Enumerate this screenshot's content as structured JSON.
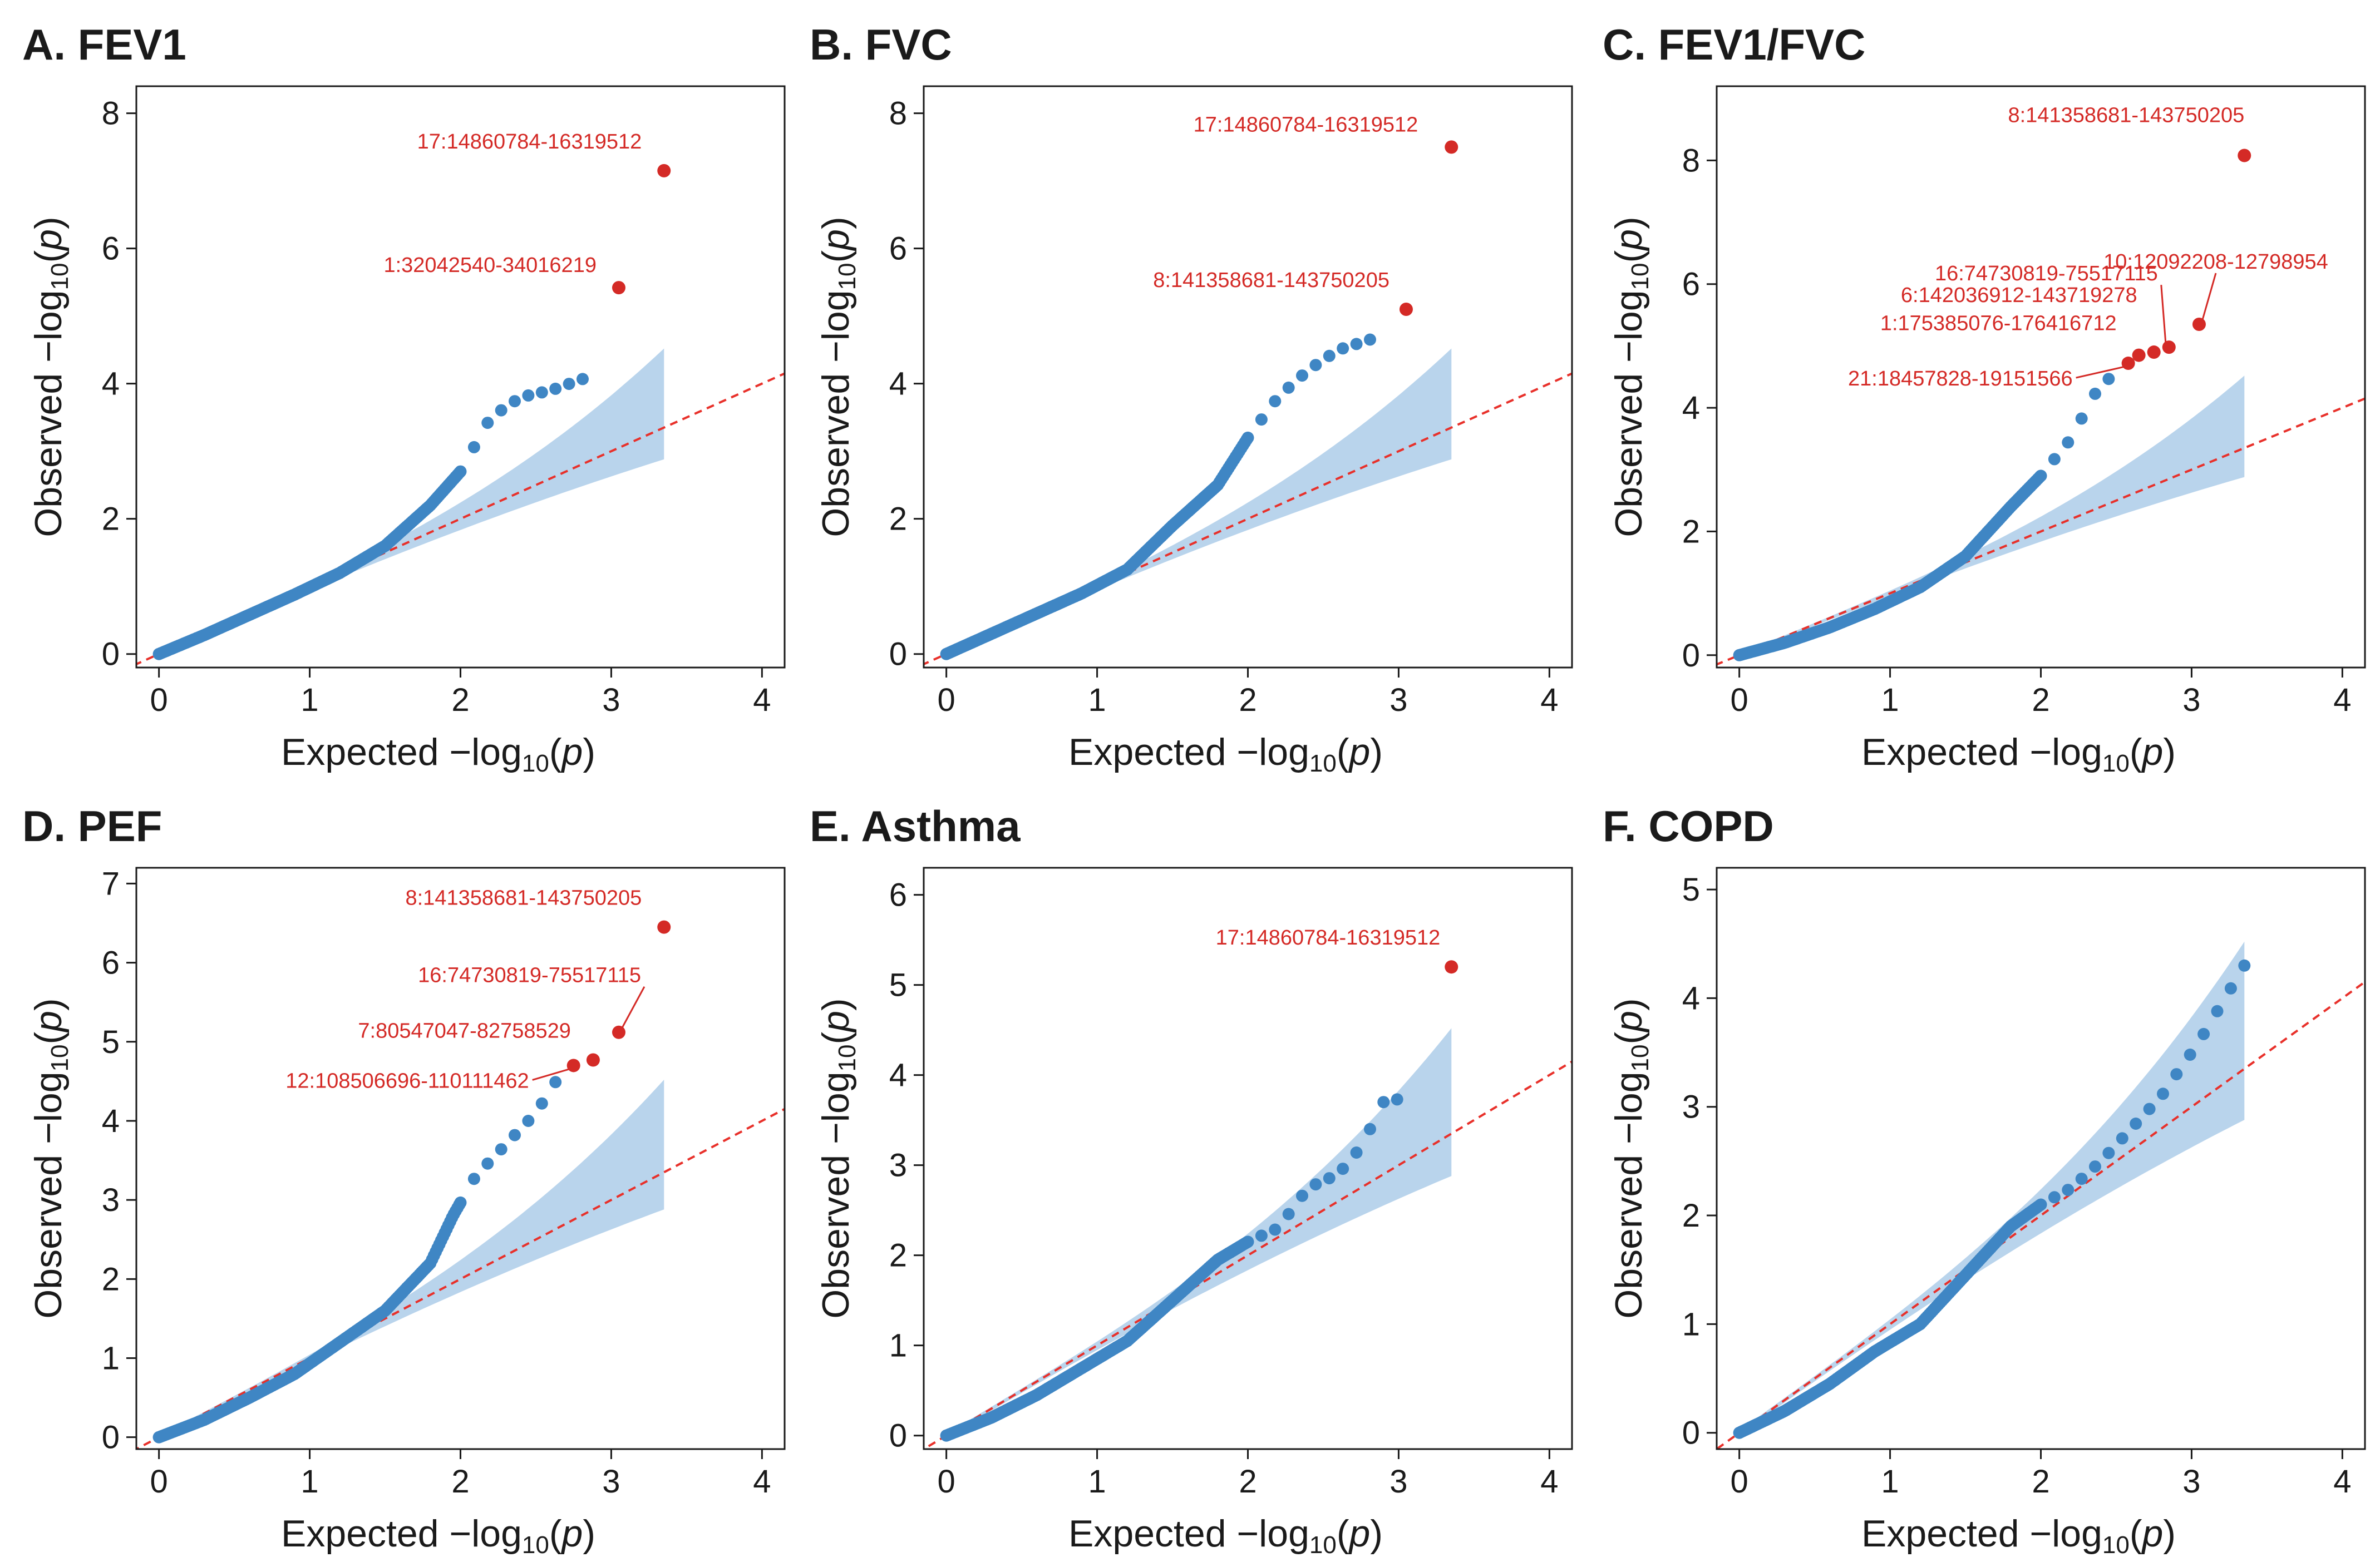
{
  "figure": {
    "x_label_main": "Expected −log",
    "y_label_main": "Observed −log",
    "label_base_sub": "10",
    "label_open": "(",
    "label_var": "p",
    "label_close": ")"
  },
  "colors": {
    "points": "#3f86c4",
    "hits": "#d42a26",
    "band": "#b9d4ec",
    "reference_line": "#e8302a"
  },
  "chart_data": [
    {
      "id": "A",
      "type": "scatter",
      "title": "A. FEV1",
      "xlabel": "Expected −log10(p)",
      "ylabel": "Observed −log10(p)",
      "xlim": [
        -0.15,
        4.15
      ],
      "ylim": [
        -0.2,
        8.4
      ],
      "xticks": [
        0,
        1,
        2,
        3,
        4
      ],
      "yticks": [
        0,
        2,
        4,
        6,
        8
      ],
      "max_expected": 3.35,
      "curve": [
        [
          0,
          0
        ],
        [
          0.3,
          0.28
        ],
        [
          0.6,
          0.58
        ],
        [
          0.9,
          0.88
        ],
        [
          1.2,
          1.2
        ],
        [
          1.5,
          1.6
        ],
        [
          1.8,
          2.2
        ],
        [
          2.0,
          2.7
        ],
        [
          2.2,
          3.5
        ],
        [
          2.4,
          3.8
        ],
        [
          2.6,
          3.9
        ],
        [
          2.85,
          4.1
        ]
      ],
      "hits": [
        {
          "label": "17:14860784-16319512",
          "x": 3.35,
          "y": 7.15
        },
        {
          "label": "1:32042540-34016219",
          "x": 3.05,
          "y": 5.42
        }
      ]
    },
    {
      "id": "B",
      "type": "scatter",
      "title": "B. FVC",
      "xlabel": "Expected −log10(p)",
      "ylabel": "Observed −log10(p)",
      "xlim": [
        -0.15,
        4.15
      ],
      "ylim": [
        -0.2,
        8.4
      ],
      "xticks": [
        0,
        1,
        2,
        3,
        4
      ],
      "yticks": [
        0,
        2,
        4,
        6,
        8
      ],
      "max_expected": 3.35,
      "curve": [
        [
          0,
          0
        ],
        [
          0.3,
          0.3
        ],
        [
          0.6,
          0.6
        ],
        [
          0.9,
          0.9
        ],
        [
          1.2,
          1.25
        ],
        [
          1.5,
          1.9
        ],
        [
          1.8,
          2.5
        ],
        [
          2.0,
          3.2
        ],
        [
          2.2,
          3.8
        ],
        [
          2.4,
          4.2
        ],
        [
          2.6,
          4.5
        ],
        [
          2.85,
          4.68
        ]
      ],
      "hits": [
        {
          "label": "17:14860784-16319512",
          "x": 3.35,
          "y": 7.5
        },
        {
          "label": "8:141358681-143750205",
          "x": 3.05,
          "y": 5.1
        }
      ]
    },
    {
      "id": "C",
      "type": "scatter",
      "title": "C. FEV1/FVC",
      "xlabel": "Expected −log10(p)",
      "ylabel": "Observed −log10(p)",
      "xlim": [
        -0.15,
        4.15
      ],
      "ylim": [
        -0.2,
        9.2
      ],
      "xticks": [
        0,
        1,
        2,
        3,
        4
      ],
      "yticks": [
        0,
        2,
        4,
        6,
        8
      ],
      "max_expected": 3.35,
      "curve": [
        [
          0,
          0
        ],
        [
          0.3,
          0.2
        ],
        [
          0.6,
          0.45
        ],
        [
          0.9,
          0.75
        ],
        [
          1.2,
          1.1
        ],
        [
          1.5,
          1.6
        ],
        [
          1.8,
          2.4
        ],
        [
          2.0,
          2.9
        ],
        [
          2.2,
          3.5
        ],
        [
          2.35,
          4.2
        ],
        [
          2.5,
          4.6
        ]
      ],
      "hits": [
        {
          "label": "8:141358681-143750205",
          "x": 3.35,
          "y": 8.08
        },
        {
          "label": "10:12092208-12798954",
          "x": 3.05,
          "y": 5.35
        },
        {
          "label": "16:74730819-75517115",
          "x": 2.85,
          "y": 4.98
        },
        {
          "label": "6:142036912-143719278",
          "x": 2.75,
          "y": 4.9
        },
        {
          "label": "1:175385076-176416712",
          "x": 2.65,
          "y": 4.85
        },
        {
          "label": "21:18457828-19151566",
          "x": 2.58,
          "y": 4.72
        }
      ]
    },
    {
      "id": "D",
      "type": "scatter",
      "title": "D. PEF",
      "xlabel": "Expected −log10(p)",
      "ylabel": "Observed −log10(p)",
      "xlim": [
        -0.15,
        4.15
      ],
      "ylim": [
        -0.15,
        7.2
      ],
      "xticks": [
        0,
        1,
        2,
        3,
        4
      ],
      "yticks": [
        0,
        1,
        2,
        3,
        4,
        5,
        6,
        7
      ],
      "max_expected": 3.35,
      "curve": [
        [
          0,
          0
        ],
        [
          0.3,
          0.22
        ],
        [
          0.6,
          0.5
        ],
        [
          0.9,
          0.8
        ],
        [
          1.2,
          1.2
        ],
        [
          1.5,
          1.6
        ],
        [
          1.8,
          2.2
        ],
        [
          1.95,
          2.8
        ],
        [
          2.1,
          3.3
        ],
        [
          2.3,
          3.7
        ],
        [
          2.5,
          4.1
        ],
        [
          2.65,
          4.55
        ]
      ],
      "hits": [
        {
          "label": "8:141358681-143750205",
          "x": 3.35,
          "y": 6.45
        },
        {
          "label": "16:74730819-75517115",
          "x": 3.05,
          "y": 5.12
        },
        {
          "label": "7:80547047-82758529",
          "x": 2.88,
          "y": 4.77
        },
        {
          "label": "12:108506696-110111462",
          "x": 2.75,
          "y": 4.7
        }
      ]
    },
    {
      "id": "E",
      "type": "scatter",
      "title": "E. Asthma",
      "xlabel": "Expected −log10(p)",
      "ylabel": "Observed −log10(p)",
      "xlim": [
        -0.15,
        4.15
      ],
      "ylim": [
        -0.15,
        6.3
      ],
      "xticks": [
        0,
        1,
        2,
        3,
        4
      ],
      "yticks": [
        0,
        1,
        2,
        3,
        4,
        5,
        6
      ],
      "max_expected": 3.35,
      "curve": [
        [
          0,
          0
        ],
        [
          0.3,
          0.2
        ],
        [
          0.6,
          0.45
        ],
        [
          0.9,
          0.75
        ],
        [
          1.2,
          1.05
        ],
        [
          1.5,
          1.5
        ],
        [
          1.8,
          1.95
        ],
        [
          2.0,
          2.15
        ],
        [
          2.2,
          2.3
        ],
        [
          2.4,
          2.75
        ],
        [
          2.6,
          2.9
        ],
        [
          2.75,
          3.2
        ],
        [
          2.9,
          3.7
        ],
        [
          3.05,
          3.75
        ]
      ],
      "hits": [
        {
          "label": "17:14860784-16319512",
          "x": 3.35,
          "y": 5.2
        }
      ]
    },
    {
      "id": "F",
      "type": "scatter",
      "title": "F. COPD",
      "xlabel": "Expected −log10(p)",
      "ylabel": "Observed −log10(p)",
      "xlim": [
        -0.15,
        4.15
      ],
      "ylim": [
        -0.15,
        5.2
      ],
      "xticks": [
        0,
        1,
        2,
        3,
        4
      ],
      "yticks": [
        0,
        1,
        2,
        3,
        4,
        5
      ],
      "max_expected": 3.35,
      "curve": [
        [
          0,
          0
        ],
        [
          0.3,
          0.2
        ],
        [
          0.6,
          0.45
        ],
        [
          0.9,
          0.75
        ],
        [
          1.2,
          1.0
        ],
        [
          1.4,
          1.3
        ],
        [
          1.6,
          1.6
        ],
        [
          1.8,
          1.9
        ],
        [
          2.0,
          2.1
        ],
        [
          2.2,
          2.25
        ],
        [
          2.4,
          2.5
        ],
        [
          2.6,
          2.8
        ],
        [
          2.8,
          3.1
        ],
        [
          3.05,
          3.6
        ],
        [
          3.35,
          4.3
        ]
      ],
      "hits": []
    }
  ]
}
